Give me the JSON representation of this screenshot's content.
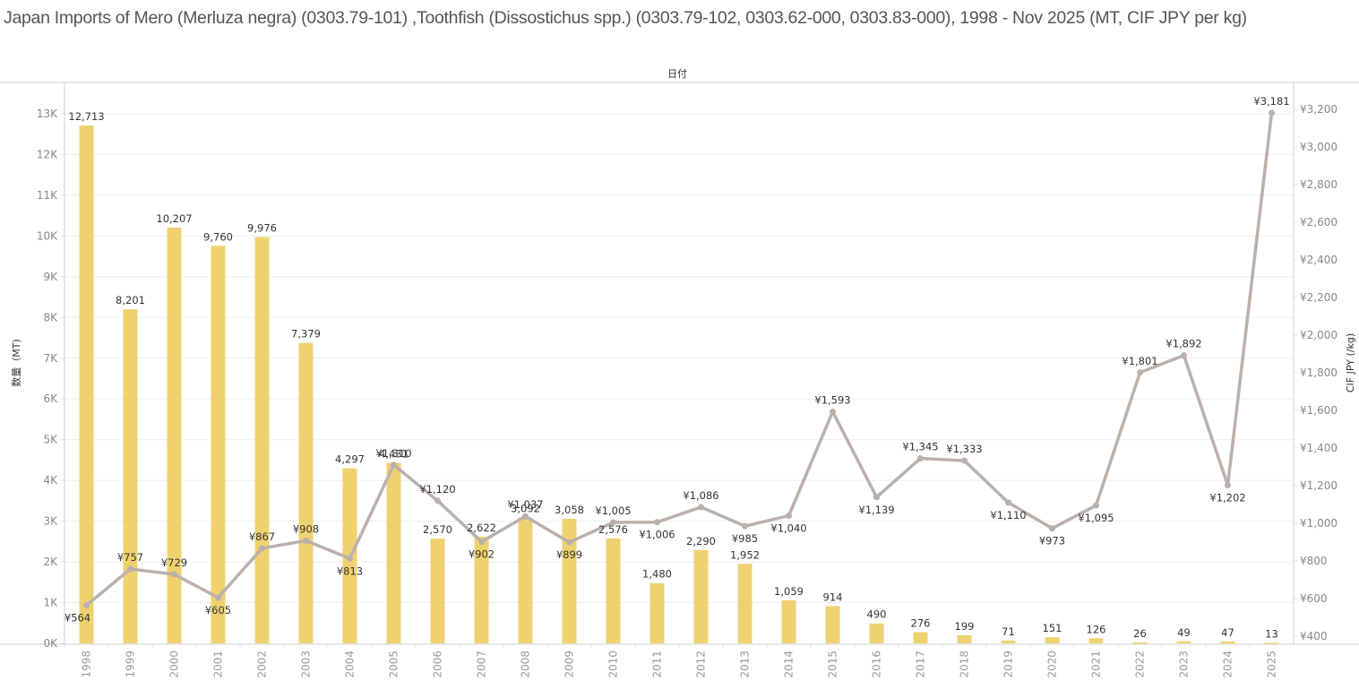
{
  "page": {
    "title": "Japan Imports of  Mero (Merluza negra) (0303.79-101) ,Toothfish (Dissostichus spp.) (0303.79-102, 0303.62-000, 0303.83-000), 1998 - Nov 2025 (MT, CIF JPY per kg)",
    "column_header": "日付"
  },
  "chart_data": {
    "type": "bar",
    "title": "Japan Imports of  Mero (Merluza negra) (0303.79-101) ,Toothfish (Dissostichus spp.) (0303.79-102, 0303.62-000, 0303.83-000), 1998 - Nov 2025 (MT, CIF JPY per kg)",
    "xlabel": "日付",
    "ylabel": "数量（MT)",
    "y2label": "CIF JPY (/kg)",
    "categories": [
      "1998",
      "1999",
      "2000",
      "2001",
      "2002",
      "2003",
      "2004",
      "2005",
      "2006",
      "2007",
      "2008",
      "2009",
      "2010",
      "2011",
      "2012",
      "2013",
      "2014",
      "2015",
      "2016",
      "2017",
      "2018",
      "2019",
      "2020",
      "2021",
      "2022",
      "2023",
      "2024",
      "2025"
    ],
    "series": [
      {
        "name": "数量（MT)",
        "type": "bar",
        "axis": "left",
        "color": "#EFD26F",
        "values": [
          12713,
          8201,
          10207,
          9760,
          9976,
          7379,
          4297,
          4431,
          2570,
          2622,
          3092,
          3058,
          2576,
          1480,
          2290,
          1952,
          1059,
          914,
          490,
          276,
          199,
          71,
          151,
          126,
          26,
          49,
          47,
          13
        ],
        "labels": [
          "12,713",
          "8,201",
          "10,207",
          "9,760",
          "9,976",
          "7,379",
          "4,297",
          "4,431",
          "2,570",
          "2,622",
          "3,092",
          "3,058",
          "2,576",
          "1,480",
          "2,290",
          "1,952",
          "1,059",
          "914",
          "490",
          "276",
          "199",
          "71",
          "151",
          "126",
          "26",
          "49",
          "47",
          "13"
        ]
      },
      {
        "name": "CIF JPY (/kg)",
        "type": "line",
        "axis": "right",
        "color": "#BAB0AC",
        "values": [
          564,
          757,
          729,
          605,
          867,
          908,
          813,
          1310,
          1120,
          902,
          1037,
          899,
          1005,
          1006,
          1086,
          985,
          1040,
          1593,
          1139,
          1345,
          1333,
          1110,
          973,
          1095,
          1801,
          1892,
          1202,
          3181
        ],
        "labels": [
          "¥564",
          "¥757",
          "¥729",
          "¥605",
          "¥867",
          "¥908",
          "¥813",
          "¥1,310",
          "¥1,120",
          "¥902",
          "¥1,037",
          "¥899",
          "¥1,005",
          "¥1,006",
          "¥1,086",
          "¥985",
          "¥1,040",
          "¥1,593",
          "¥1,139",
          "¥1,345",
          "¥1,333",
          "¥1,110",
          "¥973",
          "¥1,095",
          "¥1,801",
          "¥1,892",
          "¥1,202",
          "¥3,181"
        ],
        "label_position": [
          "below",
          "above",
          "above",
          "below",
          "above",
          "above",
          "below",
          "above",
          "above",
          "below",
          "above",
          "below",
          "above",
          "below",
          "above",
          "below",
          "below",
          "above",
          "below",
          "above",
          "above",
          "below",
          "below",
          "below",
          "above",
          "above",
          "below",
          "above"
        ]
      }
    ],
    "ylim": [
      0,
      13700
    ],
    "yticks": [
      0,
      1000,
      2000,
      3000,
      4000,
      5000,
      6000,
      7000,
      8000,
      9000,
      10000,
      11000,
      12000,
      13000
    ],
    "ytick_labels": [
      "0K",
      "1K",
      "2K",
      "3K",
      "4K",
      "5K",
      "6K",
      "7K",
      "8K",
      "9K",
      "10K",
      "11K",
      "12K",
      "13K"
    ],
    "y2lim": [
      400,
      3300
    ],
    "y2ticks": [
      400,
      600,
      800,
      1000,
      1200,
      1400,
      1600,
      1800,
      2000,
      2200,
      2400,
      2600,
      2800,
      3000,
      3200
    ],
    "y2tick_labels": [
      "¥400",
      "¥600",
      "¥800",
      "¥1,000",
      "¥1,200",
      "¥1,400",
      "¥1,600",
      "¥1,800",
      "¥2,000",
      "¥2,200",
      "¥2,400",
      "¥2,600",
      "¥2,800",
      "¥3,000",
      "¥3,200"
    ],
    "grid": true,
    "legend": "none"
  }
}
